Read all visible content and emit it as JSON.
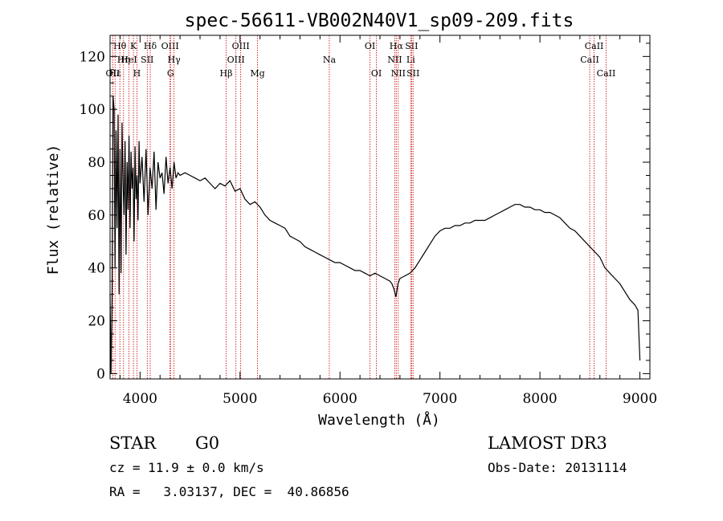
{
  "chart_data": {
    "type": "line",
    "title": "spec-56611-VB002N40V1_sp09-209.fits",
    "xlabel": "Wavelength (Å)",
    "ylabel": "Flux (relative)",
    "xlim": [
      3700,
      9100
    ],
    "ylim": [
      -2,
      128
    ],
    "xticks": [
      4000,
      5000,
      6000,
      7000,
      8000,
      9000
    ],
    "yticks": [
      0,
      20,
      40,
      60,
      80,
      100,
      120
    ],
    "series": [
      {
        "name": "flux",
        "x": [
          3700,
          3710,
          3720,
          3730,
          3740,
          3750,
          3760,
          3770,
          3780,
          3790,
          3800,
          3810,
          3820,
          3830,
          3840,
          3850,
          3860,
          3870,
          3880,
          3890,
          3900,
          3910,
          3920,
          3930,
          3940,
          3950,
          3960,
          3970,
          3980,
          3990,
          4000,
          4020,
          4040,
          4060,
          4080,
          4100,
          4120,
          4140,
          4160,
          4180,
          4200,
          4220,
          4240,
          4260,
          4280,
          4300,
          4320,
          4340,
          4360,
          4380,
          4400,
          4450,
          4500,
          4550,
          4600,
          4650,
          4700,
          4750,
          4800,
          4850,
          4900,
          4950,
          5000,
          5050,
          5100,
          5150,
          5200,
          5250,
          5300,
          5350,
          5400,
          5450,
          5500,
          5550,
          5600,
          5650,
          5700,
          5750,
          5800,
          5850,
          5900,
          5950,
          6000,
          6050,
          6100,
          6150,
          6200,
          6250,
          6300,
          6350,
          6400,
          6450,
          6500,
          6520,
          6540,
          6560,
          6580,
          6600,
          6650,
          6700,
          6750,
          6800,
          6850,
          6900,
          6950,
          7000,
          7050,
          7100,
          7150,
          7200,
          7250,
          7300,
          7350,
          7400,
          7450,
          7500,
          7550,
          7600,
          7650,
          7700,
          7750,
          7800,
          7850,
          7900,
          7950,
          8000,
          8050,
          8100,
          8150,
          8200,
          8250,
          8300,
          8350,
          8400,
          8450,
          8500,
          8550,
          8600,
          8650,
          8700,
          8750,
          8800,
          8850,
          8900,
          8950,
          8980,
          9000
        ],
        "y": [
          30,
          0,
          28,
          105,
          100,
          40,
          92,
          55,
          98,
          30,
          85,
          38,
          95,
          72,
          60,
          88,
          45,
          80,
          62,
          90,
          55,
          84,
          70,
          78,
          50,
          86,
          66,
          75,
          58,
          88,
          72,
          82,
          65,
          85,
          60,
          78,
          70,
          84,
          62,
          80,
          74,
          76,
          68,
          82,
          72,
          78,
          70,
          80,
          74,
          76,
          75,
          76,
          75,
          74,
          73,
          74,
          72,
          70,
          72,
          71,
          73,
          69,
          70,
          66,
          64,
          65,
          63,
          60,
          58,
          57,
          56,
          55,
          52,
          51,
          50,
          48,
          47,
          46,
          45,
          44,
          43,
          42,
          42,
          41,
          40,
          39,
          39,
          38,
          37,
          38,
          37,
          36,
          35,
          34,
          32,
          29,
          34,
          36,
          37,
          38,
          40,
          43,
          46,
          49,
          52,
          54,
          55,
          55,
          56,
          56,
          57,
          57,
          58,
          58,
          58,
          59,
          60,
          61,
          62,
          63,
          64,
          64,
          63,
          63,
          62,
          62,
          61,
          61,
          60,
          59,
          57,
          55,
          54,
          52,
          50,
          48,
          46,
          44,
          40,
          38,
          36,
          34,
          31,
          28,
          26,
          24,
          5
        ]
      }
    ],
    "lines": [
      {
        "label": "Hθ",
        "x": 3798,
        "row": 0
      },
      {
        "label": "Hη",
        "x": 3835,
        "row": 1
      },
      {
        "label": "OII",
        "x": 3727,
        "row": 2
      },
      {
        "label": "Hε",
        "x": 3750,
        "row": 2
      },
      {
        "label": "HeI",
        "x": 3889,
        "row": 1
      },
      {
        "label": "K",
        "x": 3934,
        "row": 0
      },
      {
        "label": "H",
        "x": 3969,
        "row": 2
      },
      {
        "label": "SII",
        "x": 4072,
        "row": 1
      },
      {
        "label": "Hδ",
        "x": 4102,
        "row": 0
      },
      {
        "label": "OIII",
        "x": 4300,
        "row": 0
      },
      {
        "label": "Hγ",
        "x": 4340,
        "row": 1
      },
      {
        "label": "G",
        "x": 4305,
        "row": 2
      },
      {
        "label": "Hβ",
        "x": 4861,
        "row": 2
      },
      {
        "label": "OIII",
        "x": 4959,
        "row": 1
      },
      {
        "label": "OIII",
        "x": 5007,
        "row": 0
      },
      {
        "label": "Mg",
        "x": 5175,
        "row": 2
      },
      {
        "label": "Na",
        "x": 5893,
        "row": 1
      },
      {
        "label": "OI",
        "x": 6300,
        "row": 0
      },
      {
        "label": "OI",
        "x": 6364,
        "row": 2
      },
      {
        "label": "NII",
        "x": 6548,
        "row": 1
      },
      {
        "label": "Hα",
        "x": 6563,
        "row": 0
      },
      {
        "label": "NII",
        "x": 6583,
        "row": 2
      },
      {
        "label": "Li",
        "x": 6708,
        "row": 1
      },
      {
        "label": "SII",
        "x": 6716,
        "row": 0
      },
      {
        "label": "SII",
        "x": 6731,
        "row": 2
      },
      {
        "label": "CaII",
        "x": 8498,
        "row": 1
      },
      {
        "label": "CaII",
        "x": 8542,
        "row": 0
      },
      {
        "label": "CaII",
        "x": 8662,
        "row": 2
      }
    ],
    "line_color": "#cc0000"
  },
  "info": {
    "object_class": "STAR",
    "subclass": "G0",
    "survey": "LAMOST DR3",
    "redshift": "cz = 11.9 ± 0.0 km/s",
    "obs_date": "Obs-Date: 20131114",
    "coords": "RA =   3.03137, DEC =  40.86856"
  }
}
